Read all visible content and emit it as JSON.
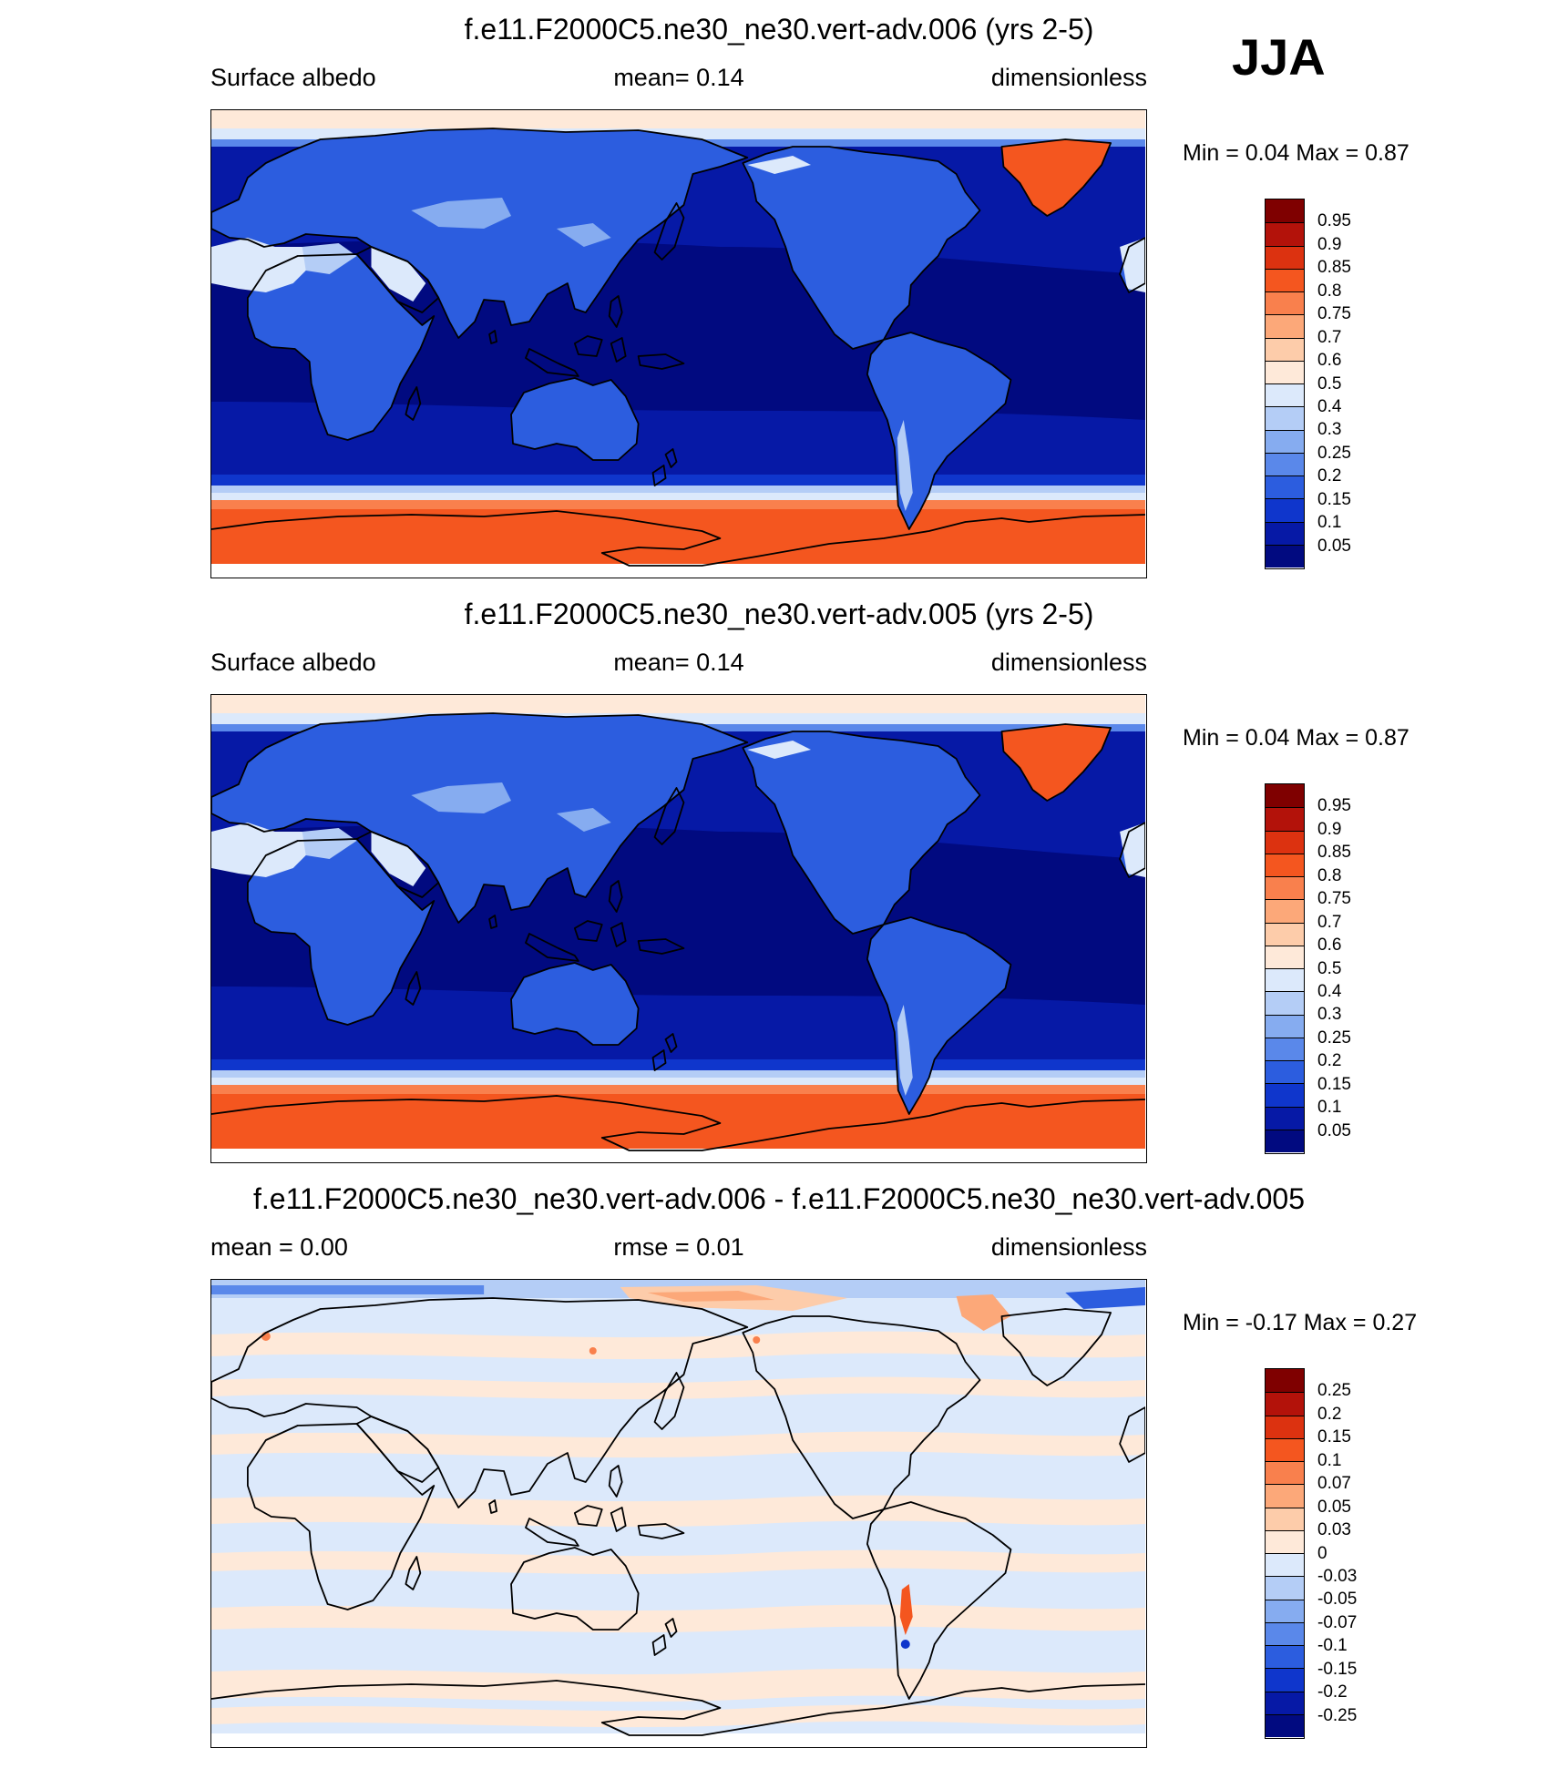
{
  "season": "JJA",
  "panels": [
    {
      "title": "f.e11.F2000C5.ne30_ne30.vert-adv.006 (yrs 2-5)",
      "left_label": "Surface albedo",
      "mid_label": "mean=   0.14",
      "right_label": "dimensionless",
      "min_text": "Min =   0.04",
      "max_text": "Max =   0.87",
      "field": "albedo",
      "colorbar": {
        "labels": [
          "0.95",
          "0.9",
          "0.85",
          "0.8",
          "0.75",
          "0.7",
          "0.6",
          "0.5",
          "0.4",
          "0.3",
          "0.25",
          "0.2",
          "0.15",
          "0.1",
          "0.05"
        ],
        "colors": [
          "#7f0000",
          "#b3120a",
          "#dc3210",
          "#f4561f",
          "#f9804d",
          "#fca879",
          "#fdccaa",
          "#fee9d9",
          "#dce9fb",
          "#b4cdf6",
          "#86acf0",
          "#5a88ea",
          "#2c5ddf",
          "#0f36cc",
          "#0619a6",
          "#010a80"
        ]
      }
    },
    {
      "title": "f.e11.F2000C5.ne30_ne30.vert-adv.005 (yrs 2-5)",
      "left_label": "Surface albedo",
      "mid_label": "mean=   0.14",
      "right_label": "dimensionless",
      "min_text": "Min =   0.04",
      "max_text": "Max =   0.87",
      "field": "albedo",
      "colorbar": {
        "labels": [
          "0.95",
          "0.9",
          "0.85",
          "0.8",
          "0.75",
          "0.7",
          "0.6",
          "0.5",
          "0.4",
          "0.3",
          "0.25",
          "0.2",
          "0.15",
          "0.1",
          "0.05"
        ],
        "colors": [
          "#7f0000",
          "#b3120a",
          "#dc3210",
          "#f4561f",
          "#f9804d",
          "#fca879",
          "#fdccaa",
          "#fee9d9",
          "#dce9fb",
          "#b4cdf6",
          "#86acf0",
          "#5a88ea",
          "#2c5ddf",
          "#0f36cc",
          "#0619a6",
          "#010a80"
        ]
      }
    },
    {
      "title": "f.e11.F2000C5.ne30_ne30.vert-adv.006 - f.e11.F2000C5.ne30_ne30.vert-adv.005",
      "left_label": "mean =   0.00",
      "mid_label": "rmse =   0.01",
      "right_label": "dimensionless",
      "min_text": "Min =  -0.17",
      "max_text": "Max =   0.27",
      "field": "difference",
      "colorbar": {
        "labels": [
          "0.25",
          "0.2",
          "0.15",
          "0.1",
          "0.07",
          "0.05",
          "0.03",
          "0",
          "-0.03",
          "-0.05",
          "-0.07",
          "-0.1",
          "-0.15",
          "-0.2",
          "-0.25"
        ],
        "colors": [
          "#7f0000",
          "#b3120a",
          "#dc3210",
          "#f4561f",
          "#f9804d",
          "#fca879",
          "#fdccaa",
          "#fee9d9",
          "#dce9fb",
          "#b4cdf6",
          "#86acf0",
          "#5a88ea",
          "#2c5ddf",
          "#0f36cc",
          "#0619a6",
          "#010a80"
        ]
      }
    }
  ]
}
